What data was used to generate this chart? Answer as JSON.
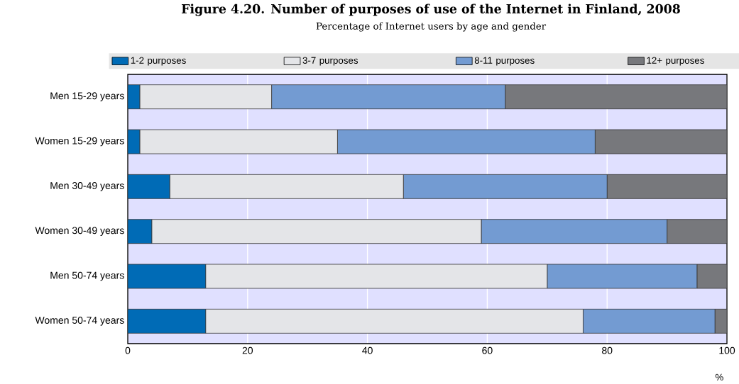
{
  "chart_data": {
    "type": "bar",
    "orientation": "horizontal",
    "stacked": true,
    "title": "Figure 4.20. Number of purposes of use of the Internet in Finland, 2008",
    "subtitle": "Percentage of Internet users by age and gender",
    "xlabel": "%",
    "categories": [
      "Men 15-29 years",
      "Women 15-29 years",
      "Men 30-49 years",
      "Women 30-49 years",
      "Men 50-74 years",
      "Women 50-74 years"
    ],
    "series": [
      {
        "name": "1-2 purposes",
        "color": "#006bb6",
        "values": [
          2,
          2,
          7,
          4,
          13,
          13
        ]
      },
      {
        "name": "3-7 purposes",
        "color": "#e4e5e8",
        "values": [
          22,
          33,
          39,
          55,
          57,
          63
        ]
      },
      {
        "name": "8-11 purposes",
        "color": "#739bd2",
        "values": [
          39,
          43,
          34,
          31,
          25,
          22
        ]
      },
      {
        "name": "12+ purposes",
        "color": "#77787c",
        "values": [
          37,
          22,
          20,
          10,
          5,
          2
        ]
      }
    ],
    "xlim": [
      0,
      100
    ],
    "xticks": [
      0,
      20,
      40,
      60,
      80,
      100
    ],
    "grid": "x",
    "legend": "top"
  }
}
